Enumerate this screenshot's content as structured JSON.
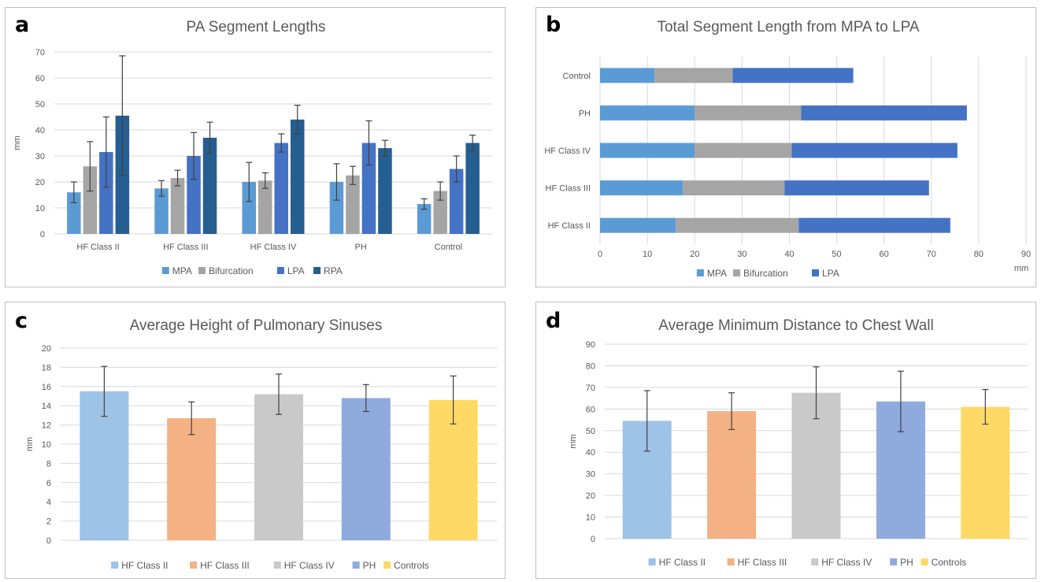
{
  "panels": [
    {
      "letter": "a"
    },
    {
      "letter": "b"
    },
    {
      "letter": "c"
    },
    {
      "letter": "d"
    }
  ],
  "chart_data": [
    {
      "type": "bar",
      "title": "PA Segment Lengths",
      "ylabel": "mm",
      "xlabel": "",
      "ylim": [
        0,
        70
      ],
      "yticks": [
        0,
        10,
        20,
        30,
        40,
        50,
        60,
        70
      ],
      "categories": [
        "HF Class II",
        "HF Class III",
        "HF Class IV",
        "PH",
        "Control"
      ],
      "series": [
        {
          "name": "MPA",
          "color": "#5b9bd5",
          "values": [
            16,
            17.5,
            20,
            20,
            11.5
          ],
          "err": [
            4,
            3,
            7.5,
            7,
            2
          ]
        },
        {
          "name": "Bifurcation",
          "color": "#a5a5a5",
          "values": [
            26,
            21.5,
            20.5,
            22.5,
            16.5
          ],
          "err": [
            9.5,
            3,
            3,
            3.5,
            3.5
          ]
        },
        {
          "name": "LPA",
          "color": "#4472c4",
          "values": [
            31.5,
            30,
            35,
            35,
            25
          ],
          "err": [
            13.5,
            9,
            3.5,
            8.5,
            5
          ]
        },
        {
          "name": "RPA",
          "color": "#255e91",
          "values": [
            45.5,
            37,
            44,
            33,
            35
          ],
          "err": [
            23,
            6,
            5.5,
            3,
            3
          ]
        }
      ],
      "legend": "bottom",
      "grid": true
    },
    {
      "type": "bar",
      "orientation": "horizontal",
      "stacked": true,
      "title": "Total Segment Length from MPA to LPA",
      "xlabel": "mm",
      "xlim": [
        0,
        90
      ],
      "xticks": [
        0,
        10,
        20,
        30,
        40,
        50,
        60,
        70,
        80,
        90
      ],
      "categories": [
        "Control",
        "PH",
        "HF Class IV",
        "HF Class III",
        "HF Class II"
      ],
      "series": [
        {
          "name": "MPA",
          "color": "#5b9bd5",
          "values": [
            11.5,
            20,
            20,
            17.5,
            16
          ]
        },
        {
          "name": "Bifurcation",
          "color": "#a5a5a5",
          "values": [
            16.5,
            22.5,
            20.5,
            21.5,
            26
          ]
        },
        {
          "name": "LPA",
          "color": "#4472c4",
          "values": [
            25.5,
            35,
            35,
            30.5,
            32
          ]
        }
      ],
      "legend": "bottom",
      "grid": true
    },
    {
      "type": "bar",
      "title": "Average Height of Pulmonary Sinuses",
      "ylabel": "mm",
      "xlabel": "",
      "ylim": [
        0,
        20
      ],
      "yticks": [
        0,
        2,
        4,
        6,
        8,
        10,
        12,
        14,
        16,
        18,
        20
      ],
      "categories": [
        "HF Class II",
        "HF Class III",
        "HF Class IV",
        "PH",
        "Controls"
      ],
      "colors": [
        "#9dc3e6",
        "#f4b183",
        "#c9c9c9",
        "#8faadc",
        "#ffd966"
      ],
      "values": [
        15.5,
        12.7,
        15.2,
        14.8,
        14.6
      ],
      "err": [
        2.6,
        1.7,
        2.1,
        1.4,
        2.5
      ],
      "legend": "bottom",
      "grid": true
    },
    {
      "type": "bar",
      "title": "Average Minimum Distance to Chest Wall",
      "ylabel": "mm",
      "xlabel": "",
      "ylim": [
        0,
        90
      ],
      "yticks": [
        0,
        10,
        20,
        30,
        40,
        50,
        60,
        70,
        80,
        90
      ],
      "categories": [
        "HF Class II",
        "HF Class III",
        "HF Class IV",
        "PH",
        "Controls"
      ],
      "colors": [
        "#9dc3e6",
        "#f4b183",
        "#c9c9c9",
        "#8faadc",
        "#ffd966"
      ],
      "values": [
        54.5,
        59,
        67.5,
        63.5,
        61
      ],
      "err": [
        14,
        8.5,
        12,
        14,
        8
      ],
      "legend": "bottom",
      "grid": true
    }
  ]
}
